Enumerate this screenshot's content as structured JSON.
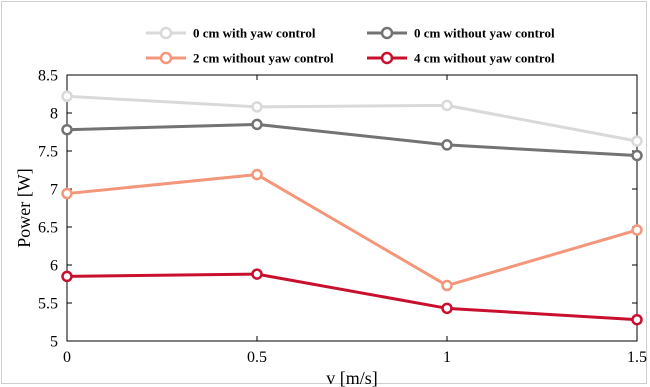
{
  "chart_data": {
    "type": "line",
    "x": [
      0,
      0.5,
      1,
      1.5
    ],
    "xticks": [
      "0",
      "0.5",
      "1",
      "1.5"
    ],
    "yticks": [
      "5",
      "5.5",
      "6",
      "6.5",
      "7",
      "7.5",
      "8",
      "8.5"
    ],
    "xlim": [
      0,
      1.5
    ],
    "ylim": [
      5,
      8.5
    ],
    "xlabel": "v [m/s]",
    "ylabel": "Power [W]",
    "grid": false,
    "legend_placement": "top",
    "series": [
      {
        "name": "0 cm with yaw control",
        "color": "#d9d9d9",
        "values": [
          8.22,
          8.08,
          8.1,
          7.63
        ]
      },
      {
        "name": "0 cm without yaw control",
        "color": "#737373",
        "values": [
          7.78,
          7.85,
          7.58,
          7.44
        ]
      },
      {
        "name": "2 cm without yaw control",
        "color": "#f4967a",
        "values": [
          6.94,
          7.19,
          5.73,
          6.46
        ]
      },
      {
        "name": "4 cm without yaw control",
        "color": "#c8102e",
        "values": [
          5.85,
          5.88,
          5.43,
          5.28
        ]
      }
    ]
  }
}
